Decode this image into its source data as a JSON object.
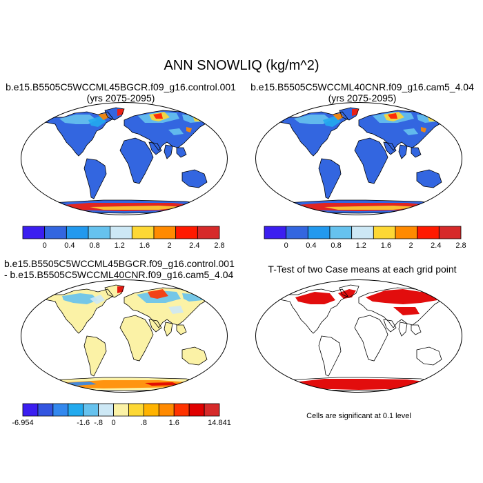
{
  "main_title": "ANN SNOWLIQ (kg/m^2)",
  "panels": {
    "top_left": {
      "title_line1": "b.e15.B5505C5WCCML45BGCR.f09_g16.control.001",
      "title_line2": "(yrs 2075-2095)"
    },
    "top_right": {
      "title_line1": "b.e15.B5505C5WCCML40CNR.f09_g16.cam5_4.04",
      "title_line2": "(yrs 2075-2095)"
    },
    "bottom_left": {
      "title_line1": "b.e15.B5505C5WCCML45BGCR.f09_g16.control.001",
      "title_line2": "- b.e15.B5505C5WCCML40CNR.f09_g16.cam5_4.04"
    },
    "bottom_right": {
      "title": "T-Test of two Case means at each grid point",
      "note": "Cells are significant at 0.1 level"
    }
  },
  "colorbar_main": {
    "colors": [
      "#3b1ef0",
      "#3366e0",
      "#2299ee",
      "#66c2ee",
      "#cde8f5",
      "#fdd835",
      "#ff8a00",
      "#ff1a00",
      "#d62a2a"
    ],
    "labels": [
      "0",
      "0.4",
      "0.8",
      "1.2",
      "1.6",
      "2",
      "2.4",
      "2.8"
    ]
  },
  "colorbar_diff": {
    "colors": [
      "#3b1ef0",
      "#3355e0",
      "#3388ee",
      "#22aaee",
      "#66c2ee",
      "#cde8f5",
      "#fbf2a6",
      "#fdd835",
      "#ffb300",
      "#ff8a00",
      "#ff3300",
      "#e00000",
      "#d62a2a"
    ],
    "labels": [
      "-6.954",
      "-1.6",
      "-.8",
      "0",
      ".8",
      "1.6",
      "14.841"
    ]
  },
  "colors": {
    "land_main": "#3366e0",
    "land_diff": "#fbf2a6",
    "significant": "#e00000"
  }
}
